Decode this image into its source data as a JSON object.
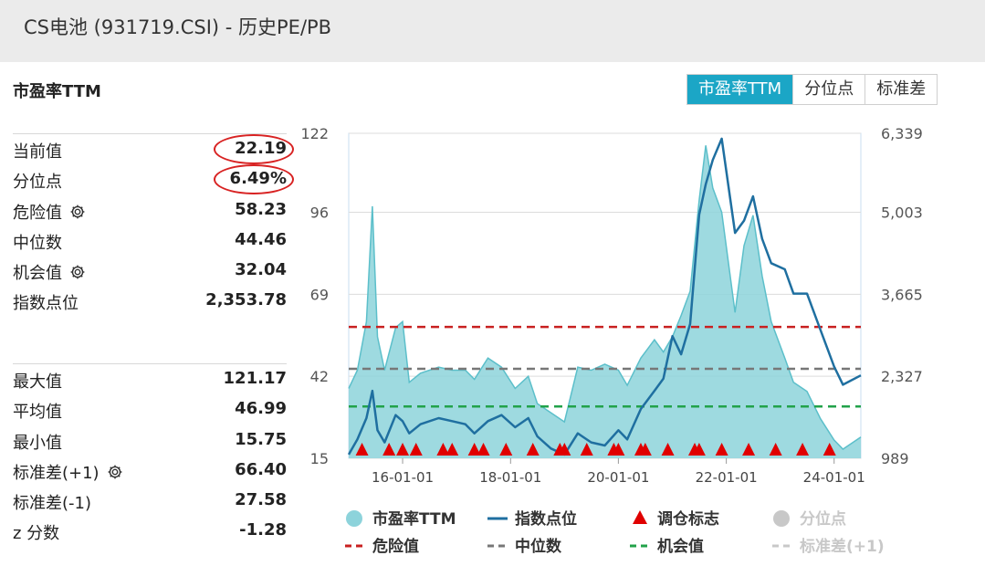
{
  "page": {
    "title": "CS电池 (931719.CSI) - 历史PE/PB"
  },
  "section": {
    "title": "市盈率TTM"
  },
  "tabs": [
    {
      "label": "市盈率TTM",
      "active": true
    },
    {
      "label": "分位点",
      "active": false
    },
    {
      "label": "标准差",
      "active": false
    }
  ],
  "stats_top": [
    {
      "label": "当前值",
      "value": "22.19",
      "circled": true,
      "gear": false
    },
    {
      "label": "分位点",
      "value": "6.49%",
      "circled": true,
      "gear": false
    },
    {
      "label": "危险值",
      "value": "58.23",
      "circled": false,
      "gear": true
    },
    {
      "label": "中位数",
      "value": "44.46",
      "circled": false,
      "gear": false
    },
    {
      "label": "机会值",
      "value": "32.04",
      "circled": false,
      "gear": true
    },
    {
      "label": "指数点位",
      "value": "2,353.78",
      "circled": false,
      "gear": false
    }
  ],
  "stats_bottom": [
    {
      "label": "最大值",
      "value": "121.17",
      "gear": false
    },
    {
      "label": "平均值",
      "value": "46.99",
      "gear": false
    },
    {
      "label": "最小值",
      "value": "15.75",
      "gear": false
    },
    {
      "label": "标准差(+1)",
      "value": "66.40",
      "gear": true
    },
    {
      "label": "标准差(-1)",
      "value": "27.58",
      "gear": false
    },
    {
      "label": "z 分数",
      "value": "-1.28",
      "gear": false
    }
  ],
  "colors": {
    "pe_fill": "#8dd3db",
    "pe_line": "#5cbfca",
    "index_line": "#1f6fa0",
    "danger": "#c82020",
    "median": "#777777",
    "opportunity": "#22a24a",
    "marker": "#e00000",
    "disabled": "#c8c8c8",
    "accent": "#1ba6c6"
  },
  "chart_data": {
    "type": "area",
    "left_axis": {
      "ticks": [
        122,
        96,
        69,
        42,
        15
      ],
      "ylim": [
        15,
        122
      ]
    },
    "right_axis": {
      "ticks": [
        "6,339",
        "5,003",
        "3,665",
        "2,327",
        "989"
      ],
      "ylim": [
        989,
        6339
      ]
    },
    "x_ticks": [
      "16-01-01",
      "18-01-01",
      "20-01-01",
      "22-01-01",
      "24-01-01"
    ],
    "x_range": [
      "2015-01-01",
      "2024-06-30"
    ],
    "reference_lines": [
      {
        "name": "危险值",
        "value": 58.23
      },
      {
        "name": "中位数",
        "value": 44.46
      },
      {
        "name": "机会值",
        "value": 32.04
      }
    ],
    "series": [
      {
        "name": "市盈率TTM",
        "points": [
          [
            "2015-01-01",
            38
          ],
          [
            "2015-03-01",
            44
          ],
          [
            "2015-05-01",
            60
          ],
          [
            "2015-06-10",
            98
          ],
          [
            "2015-07-15",
            55
          ],
          [
            "2015-09-01",
            44
          ],
          [
            "2015-11-15",
            58
          ],
          [
            "2016-01-01",
            60
          ],
          [
            "2016-02-15",
            40
          ],
          [
            "2016-05-01",
            43
          ],
          [
            "2016-09-01",
            45
          ],
          [
            "2016-12-01",
            44
          ],
          [
            "2017-03-01",
            44
          ],
          [
            "2017-05-01",
            41
          ],
          [
            "2017-08-01",
            48
          ],
          [
            "2017-11-01",
            45
          ],
          [
            "2018-02-01",
            38
          ],
          [
            "2018-05-01",
            42
          ],
          [
            "2018-07-01",
            33
          ],
          [
            "2018-10-01",
            30
          ],
          [
            "2019-01-01",
            27
          ],
          [
            "2019-04-01",
            45
          ],
          [
            "2019-07-01",
            44
          ],
          [
            "2019-10-01",
            46
          ],
          [
            "2020-01-01",
            44
          ],
          [
            "2020-03-01",
            39
          ],
          [
            "2020-06-01",
            48
          ],
          [
            "2020-09-01",
            54
          ],
          [
            "2020-11-01",
            50
          ],
          [
            "2021-01-01",
            55
          ],
          [
            "2021-03-01",
            62
          ],
          [
            "2021-05-01",
            70
          ],
          [
            "2021-07-01",
            100
          ],
          [
            "2021-08-15",
            118
          ],
          [
            "2021-10-01",
            104
          ],
          [
            "2021-12-01",
            96
          ],
          [
            "2022-03-01",
            63
          ],
          [
            "2022-05-01",
            85
          ],
          [
            "2022-07-01",
            95
          ],
          [
            "2022-09-01",
            75
          ],
          [
            "2022-11-01",
            60
          ],
          [
            "2023-02-01",
            48
          ],
          [
            "2023-04-01",
            40
          ],
          [
            "2023-07-01",
            37
          ],
          [
            "2023-10-01",
            28
          ],
          [
            "2024-01-01",
            21
          ],
          [
            "2024-03-01",
            18
          ],
          [
            "2024-06-30",
            22
          ]
        ]
      },
      {
        "name": "指数点位",
        "points": [
          [
            "2015-01-01",
            1050
          ],
          [
            "2015-03-01",
            1300
          ],
          [
            "2015-05-01",
            1650
          ],
          [
            "2015-06-10",
            2100
          ],
          [
            "2015-07-15",
            1450
          ],
          [
            "2015-09-01",
            1250
          ],
          [
            "2015-11-15",
            1700
          ],
          [
            "2016-01-01",
            1600
          ],
          [
            "2016-02-15",
            1400
          ],
          [
            "2016-05-01",
            1550
          ],
          [
            "2016-09-01",
            1650
          ],
          [
            "2016-12-01",
            1600
          ],
          [
            "2017-03-01",
            1550
          ],
          [
            "2017-05-01",
            1400
          ],
          [
            "2017-08-01",
            1600
          ],
          [
            "2017-11-01",
            1700
          ],
          [
            "2018-02-01",
            1500
          ],
          [
            "2018-05-01",
            1650
          ],
          [
            "2018-07-01",
            1350
          ],
          [
            "2018-10-01",
            1150
          ],
          [
            "2019-01-01",
            1050
          ],
          [
            "2019-04-01",
            1400
          ],
          [
            "2019-07-01",
            1250
          ],
          [
            "2019-10-01",
            1200
          ],
          [
            "2020-01-01",
            1450
          ],
          [
            "2020-03-01",
            1300
          ],
          [
            "2020-06-01",
            1800
          ],
          [
            "2020-09-01",
            2100
          ],
          [
            "2020-11-01",
            2300
          ],
          [
            "2021-01-01",
            3000
          ],
          [
            "2021-03-01",
            2700
          ],
          [
            "2021-05-01",
            3200
          ],
          [
            "2021-07-01",
            5000
          ],
          [
            "2021-08-15",
            5500
          ],
          [
            "2021-10-01",
            5900
          ],
          [
            "2021-12-01",
            6250
          ],
          [
            "2022-03-01",
            4700
          ],
          [
            "2022-05-01",
            4900
          ],
          [
            "2022-07-01",
            5300
          ],
          [
            "2022-09-01",
            4600
          ],
          [
            "2022-11-01",
            4200
          ],
          [
            "2023-02-01",
            4100
          ],
          [
            "2023-04-01",
            3700
          ],
          [
            "2023-07-01",
            3700
          ],
          [
            "2023-10-01",
            3100
          ],
          [
            "2024-01-01",
            2500
          ],
          [
            "2024-03-01",
            2200
          ],
          [
            "2024-06-30",
            2354
          ]
        ]
      }
    ],
    "rebalance_markers": [
      "2015-04-01",
      "2015-10-01",
      "2016-01-01",
      "2016-04-01",
      "2016-10-01",
      "2016-12-01",
      "2017-05-01",
      "2017-07-01",
      "2017-12-01",
      "2018-06-01",
      "2018-12-01",
      "2019-01-01",
      "2019-06-01",
      "2019-12-01",
      "2020-01-01",
      "2020-06-01",
      "2020-07-01",
      "2020-12-01",
      "2021-06-01",
      "2021-07-01",
      "2021-12-01",
      "2022-06-01",
      "2022-12-01",
      "2023-06-01",
      "2023-12-01"
    ],
    "legend": [
      {
        "label": "市盈率TTM",
        "kind": "area",
        "enabled": true
      },
      {
        "label": "指数点位",
        "kind": "line",
        "enabled": true
      },
      {
        "label": "调仓标志",
        "kind": "triangle",
        "enabled": true
      },
      {
        "label": "分位点",
        "kind": "circle",
        "enabled": false
      },
      {
        "label": "危险值",
        "kind": "dash",
        "enabled": true
      },
      {
        "label": "中位数",
        "kind": "dash",
        "enabled": true
      },
      {
        "label": "机会值",
        "kind": "dash",
        "enabled": true
      },
      {
        "label": "标准差(+1)",
        "kind": "dash",
        "enabled": false
      }
    ],
    "grid": true,
    "legend_position": "bottom"
  }
}
